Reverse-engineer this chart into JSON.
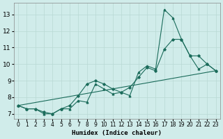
{
  "title": "",
  "xlabel": "Humidex (Indice chaleur)",
  "background_color": "#d0ecea",
  "grid_color": "#b8d8d4",
  "line_color": "#1a6b5a",
  "xlim": [
    -0.5,
    23.5
  ],
  "ylim": [
    6.7,
    13.7
  ],
  "yticks": [
    7,
    8,
    9,
    10,
    11,
    12,
    13
  ],
  "xticks": [
    0,
    1,
    2,
    3,
    4,
    5,
    6,
    7,
    8,
    9,
    10,
    11,
    12,
    13,
    14,
    15,
    16,
    17,
    18,
    19,
    20,
    21,
    22,
    23
  ],
  "series1_x": [
    0,
    1,
    2,
    3,
    4,
    5,
    6,
    7,
    8,
    9,
    10,
    11,
    12,
    13,
    14,
    15,
    16,
    17,
    18,
    19,
    20,
    21,
    22,
    23
  ],
  "series1_y": [
    7.5,
    7.3,
    7.3,
    7.0,
    7.0,
    7.3,
    7.3,
    7.8,
    7.7,
    8.8,
    8.5,
    8.2,
    8.3,
    8.1,
    9.5,
    9.9,
    9.7,
    13.3,
    12.8,
    11.5,
    10.5,
    9.7,
    10.0,
    9.6
  ],
  "series2_x": [
    0,
    1,
    2,
    3,
    4,
    5,
    6,
    7,
    8,
    9,
    10,
    11,
    12,
    13,
    14,
    15,
    16,
    17,
    18,
    19,
    20,
    21,
    22,
    23
  ],
  "series2_y": [
    7.5,
    7.3,
    7.3,
    7.1,
    7.0,
    7.3,
    7.5,
    8.1,
    8.8,
    9.0,
    8.8,
    8.5,
    8.3,
    8.6,
    9.2,
    9.8,
    9.6,
    10.9,
    11.5,
    11.5,
    10.5,
    10.5,
    10.0,
    9.6
  ],
  "series3_x": [
    0,
    23
  ],
  "series3_y": [
    7.5,
    9.6
  ]
}
